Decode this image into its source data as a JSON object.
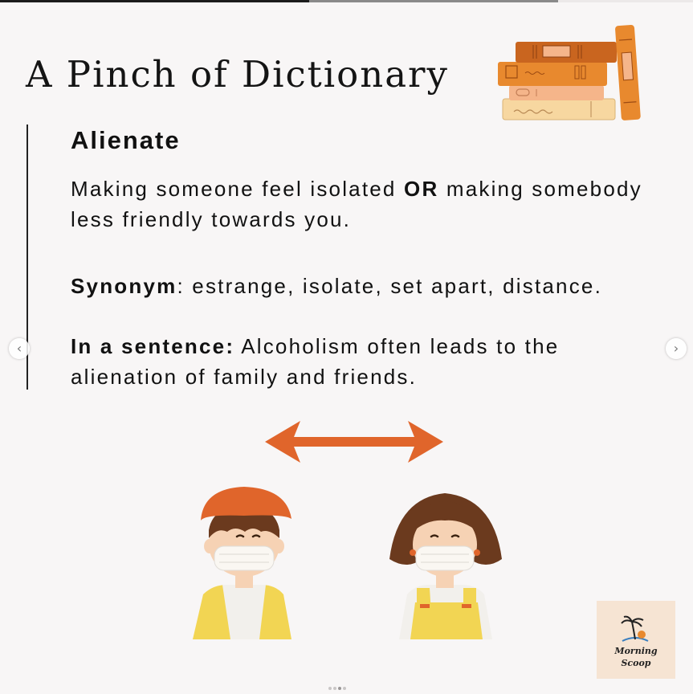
{
  "post": {
    "title": "A Pinch of Dictionary",
    "word": "Alienate",
    "definition": {
      "part1": "Making someone feel isolated ",
      "emphasis": "OR",
      "part2": " making somebody less friendly towards you."
    },
    "synonym": {
      "label": "Synonym",
      "text": ": estrange, isolate, set apart, distance."
    },
    "sentence": {
      "label": "In a sentence:",
      "text": " Alcoholism often leads to the alienation of family and friends."
    }
  },
  "brand": {
    "line1": "Morning",
    "line2": "Scoop"
  },
  "carousel": {
    "prev_icon": "chevron-left-icon",
    "next_icon": "chevron-right-icon",
    "prev_glyph": "‹",
    "next_glyph": "›",
    "slide_count": 4,
    "active_slide": 3
  },
  "colors": {
    "background": "#f8f6f6",
    "accent": "#e0652b",
    "text": "#111111",
    "book_orange": "#e8892e",
    "book_brown": "#c9651f",
    "book_peach": "#f5b58a",
    "book_cream": "#f7d7a0",
    "shirt_yellow": "#f2d553"
  }
}
